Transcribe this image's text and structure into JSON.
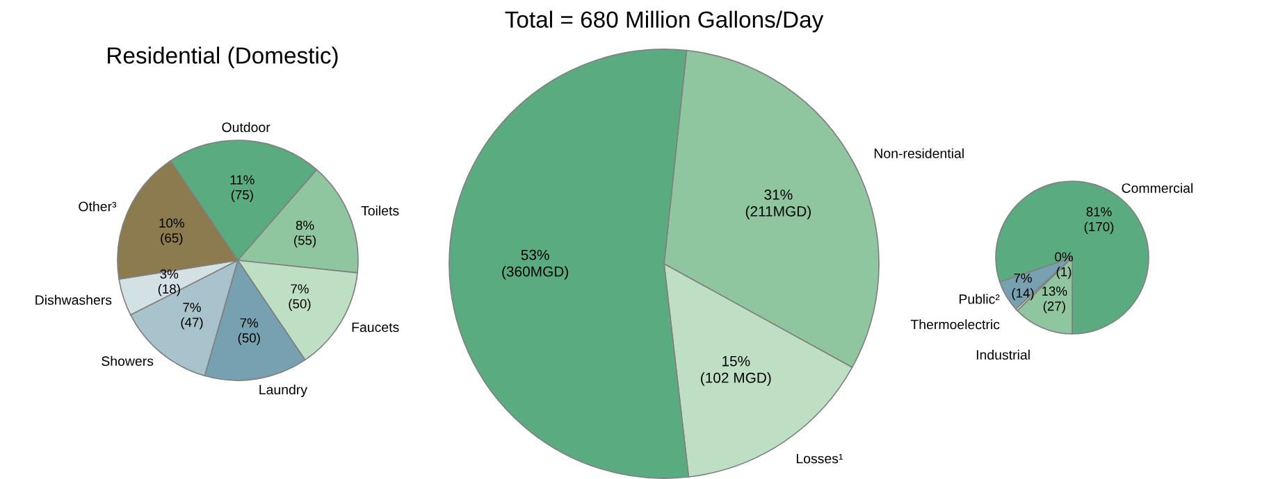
{
  "chart_data": [
    {
      "type": "pie",
      "title": "Residential (Domestic)",
      "categories": [
        "Outdoor",
        "Toilets",
        "Faucets",
        "Laundry",
        "Showers",
        "Dishwashers",
        "Other³"
      ],
      "values": [
        75,
        55,
        50,
        50,
        47,
        18,
        65
      ],
      "colors": [
        "#5aac80",
        "#8fc59f",
        "#bfdfc5",
        "#77a0b0",
        "#a9c3cc",
        "#d3e1e5",
        "#8b7b4e"
      ],
      "value_labels": [
        "11%\n(75)",
        "8%\n(55)",
        "7%\n(50)",
        "7%\n(50)",
        "7%\n(47)",
        "3%\n(18)",
        "10%\n(65)"
      ]
    },
    {
      "type": "pie",
      "title": "Total = 680 Million Gallons/Day",
      "categories": [
        "Non-residential",
        "Losses¹",
        null
      ],
      "values": [
        211,
        102,
        360
      ],
      "colors": [
        "#8fc59f",
        "#bfdfc5",
        "#5aac80"
      ],
      "value_labels": [
        "31%\n(211MGD)",
        "15%\n(102 MGD)",
        "53%\n(360MGD)"
      ]
    },
    {
      "type": "pie",
      "categories": [
        "Commercial",
        "Public²",
        "Thermoelectric",
        "Industrial"
      ],
      "values": [
        170,
        14,
        1,
        27
      ],
      "colors": [
        "#5aac80",
        "#77a0b0",
        "#bfdfc5",
        "#8fc59f"
      ],
      "value_labels": [
        "81%\n(170)",
        "7%\n(14)",
        "0%\n(1)",
        "13%\n(27)"
      ]
    }
  ]
}
